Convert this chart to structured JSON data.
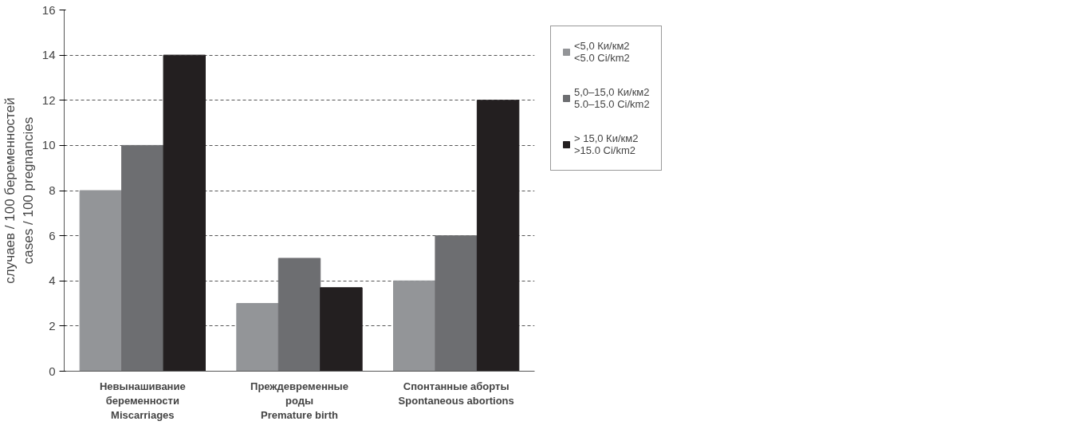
{
  "chart_data": {
    "type": "bar",
    "ylabel": "случаев / 100 беременностей\ncases / 100 pregnancies",
    "categories": [
      "Невынашивание\nбеременности\nMiscarriages",
      "Преждевременные\nроды\nPremature birth",
      "Спонтанные аборты\nSpontaneous abortions"
    ],
    "series": [
      {
        "name": "<5,0 Ки/км2\n<5.0 Ci/km2",
        "color": "#939598",
        "values": [
          8,
          3,
          4
        ]
      },
      {
        "name": "5,0–15,0 Ки/км2\n5.0–15.0 Ci/km2",
        "color": "#6d6e71",
        "values": [
          10,
          5,
          6
        ]
      },
      {
        "name": "> 15,0 Ки/км2\n>15.0 Ci/km2",
        "color": "#231f20",
        "values": [
          14,
          3.7,
          12
        ]
      }
    ],
    "ylim": [
      0,
      16
    ],
    "yticks": [
      0,
      2,
      4,
      6,
      8,
      10,
      12,
      14,
      16
    ],
    "grid": "y",
    "legend": "right"
  }
}
